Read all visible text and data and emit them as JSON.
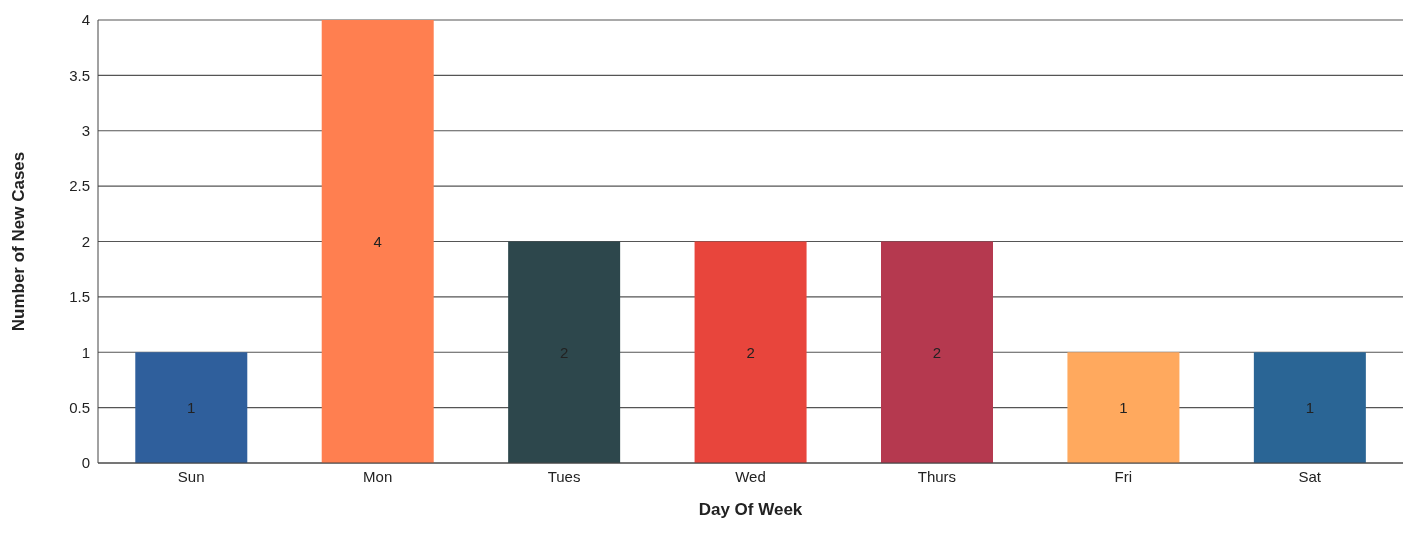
{
  "chart_data": {
    "type": "bar",
    "xlabel": "Day Of Week",
    "ylabel": "Number of New Cases",
    "categories": [
      "Sun",
      "Mon",
      "Tues",
      "Wed",
      "Thurs",
      "Fri",
      "Sat"
    ],
    "values": [
      1,
      4,
      2,
      2,
      2,
      1,
      1
    ],
    "colors": [
      "#2f5f9c",
      "#ff7f50",
      "#2d474c",
      "#e8453c",
      "#b5394f",
      "#ffa95e",
      "#2a6595"
    ],
    "ylim": [
      0,
      4
    ],
    "yticks": [
      0,
      0.5,
      1,
      1.5,
      2,
      2.5,
      3,
      3.5,
      4
    ],
    "grid": "y",
    "data_labels": true
  }
}
